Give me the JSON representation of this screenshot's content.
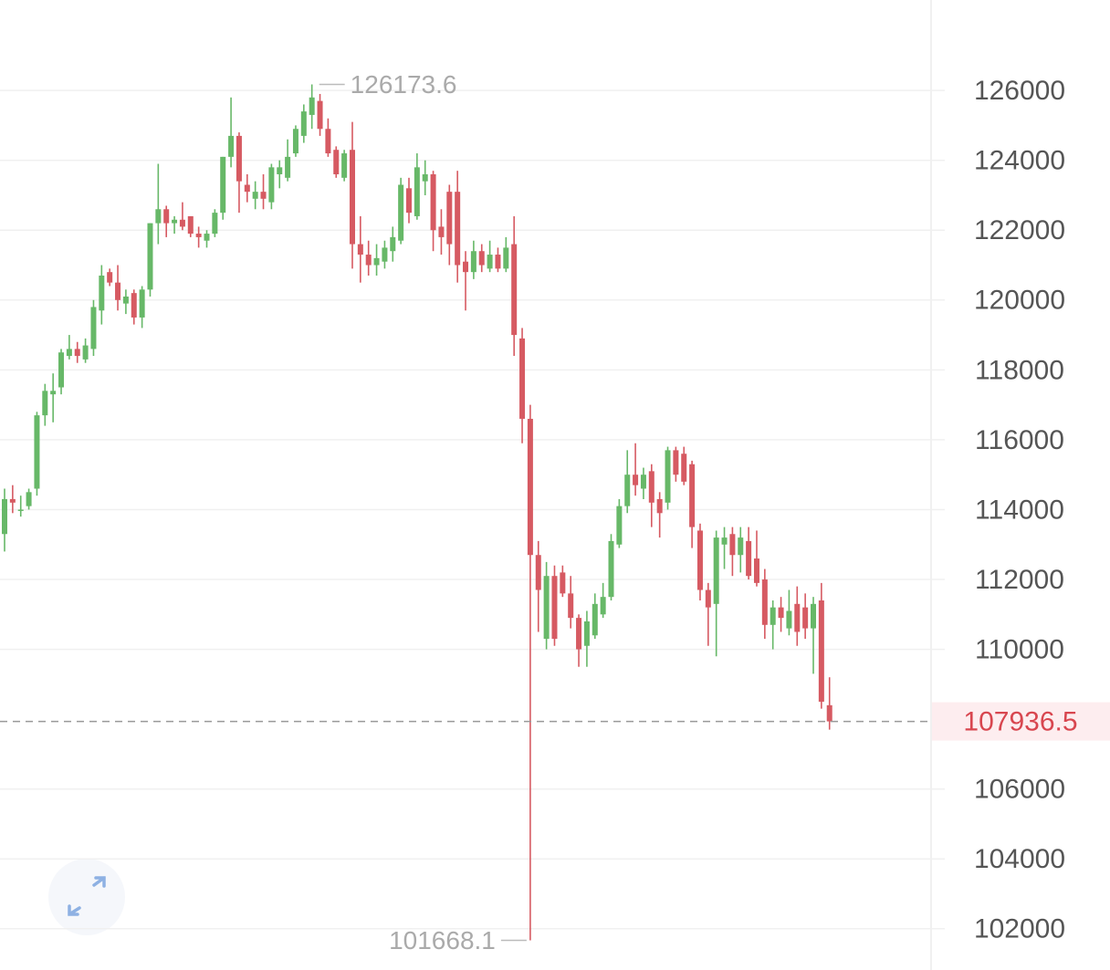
{
  "chart_data": {
    "type": "candlestick",
    "open": [
      113300,
      114300,
      114000,
      114100,
      114600,
      116700,
      117300,
      117500,
      118400,
      118600,
      118300,
      118600,
      119700,
      120800,
      120500,
      119900,
      120200,
      119500,
      120300,
      122200,
      122600,
      122200,
      122300,
      122400,
      121900,
      121700,
      121900,
      122500,
      124100,
      124700,
      123300,
      122900,
      123100,
      122800,
      123600,
      123500,
      124200,
      124700,
      125300,
      125700,
      124900,
      124300,
      123500,
      124300,
      121600,
      121300,
      121000,
      121100,
      121400,
      121700,
      123200,
      122400,
      123400,
      123600,
      122100,
      123100,
      123100,
      121100,
      120800,
      121400,
      120900,
      121300,
      120900,
      121600,
      118900,
      116600,
      112700,
      110300,
      112100,
      112200,
      111600,
      110900,
      110100,
      110400,
      111000,
      111500,
      113000,
      114100,
      115000,
      114600,
      115100,
      114300,
      114200,
      115700,
      115600,
      115300,
      113400,
      111700,
      111300,
      113000,
      113300,
      112700,
      113100,
      112600,
      112000,
      110700,
      111200,
      110600,
      111300,
      111200,
      110600,
      111400,
      108400
    ],
    "high": [
      114600,
      114700,
      114400,
      114600,
      116800,
      117600,
      117900,
      118600,
      119000,
      118800,
      118900,
      120000,
      121000,
      120900,
      121000,
      120300,
      120300,
      120400,
      122200,
      123900,
      122700,
      122400,
      122800,
      122400,
      122100,
      122000,
      122600,
      124100,
      125800,
      124800,
      123600,
      123400,
      123600,
      123900,
      124000,
      124600,
      125000,
      125600,
      126173.6,
      125900,
      125200,
      124400,
      124300,
      125100,
      122400,
      121700,
      121600,
      121700,
      122100,
      123500,
      123500,
      124200,
      124000,
      123700,
      122600,
      123300,
      123700,
      121400,
      121700,
      121600,
      121700,
      121500,
      121800,
      122400,
      119200,
      117000,
      113100,
      112500,
      112400,
      112400,
      112100,
      111000,
      111100,
      111600,
      111900,
      113300,
      114300,
      115700,
      115900,
      115200,
      115300,
      114500,
      115800,
      115800,
      115800,
      115400,
      113600,
      111900,
      113400,
      113500,
      113500,
      113500,
      113500,
      113400,
      112300,
      111400,
      111500,
      111700,
      111800,
      111600,
      111500,
      111900,
      109200
    ],
    "low": [
      112800,
      113900,
      113800,
      114000,
      114400,
      116400,
      116500,
      117300,
      118300,
      118200,
      118200,
      118400,
      119300,
      120400,
      119700,
      119600,
      119300,
      119200,
      120100,
      121600,
      121800,
      121900,
      122000,
      121800,
      121500,
      121500,
      121800,
      122300,
      123800,
      122500,
      122800,
      122600,
      122600,
      122600,
      123200,
      123400,
      124100,
      124500,
      124900,
      124700,
      124100,
      123500,
      123400,
      120900,
      120500,
      120700,
      120700,
      120900,
      121100,
      121600,
      122200,
      122300,
      123000,
      121400,
      121300,
      121000,
      120500,
      119700,
      120600,
      120800,
      120800,
      120800,
      120800,
      118400,
      115900,
      101668.1,
      110500,
      110000,
      110100,
      111500,
      110600,
      109500,
      109500,
      110300,
      110900,
      111400,
      112900,
      113900,
      114400,
      114300,
      113500,
      113200,
      114000,
      114800,
      114700,
      112900,
      111400,
      110100,
      109800,
      112300,
      112100,
      112200,
      112000,
      111800,
      110300,
      110000,
      110500,
      110400,
      110100,
      110300,
      109300,
      108300,
      107700
    ],
    "close": [
      114300,
      114200,
      114000,
      114500,
      116700,
      117400,
      117400,
      118500,
      118600,
      118400,
      118700,
      119800,
      120700,
      120500,
      120000,
      120100,
      119500,
      120300,
      122200,
      122600,
      122200,
      122300,
      122100,
      121900,
      121800,
      121900,
      122500,
      124100,
      124700,
      123400,
      123100,
      123100,
      122900,
      123800,
      123800,
      124100,
      124900,
      125400,
      125800,
      124900,
      124200,
      123600,
      124200,
      121600,
      121300,
      121000,
      121200,
      121500,
      121800,
      123300,
      122500,
      123800,
      123600,
      122000,
      121800,
      121600,
      121000,
      120800,
      121400,
      121000,
      121300,
      120900,
      121500,
      119000,
      116600,
      112700,
      111700,
      112100,
      110300,
      111600,
      110900,
      110000,
      110800,
      111300,
      111500,
      113100,
      114100,
      115000,
      114700,
      115000,
      114200,
      113900,
      115700,
      115000,
      114800,
      113500,
      111700,
      111200,
      113200,
      113200,
      112700,
      113200,
      112100,
      111900,
      110700,
      111200,
      110900,
      111100,
      110500,
      110600,
      111300,
      108500,
      107936.5
    ],
    "up_color": "#67b868",
    "down_color": "#d65a62",
    "ylim": [
      100950,
      128590
    ],
    "yticks": [
      102000,
      104000,
      106000,
      110000,
      112000,
      114000,
      116000,
      118000,
      120000,
      122000,
      124000,
      126000
    ],
    "grid": true
  }
}
